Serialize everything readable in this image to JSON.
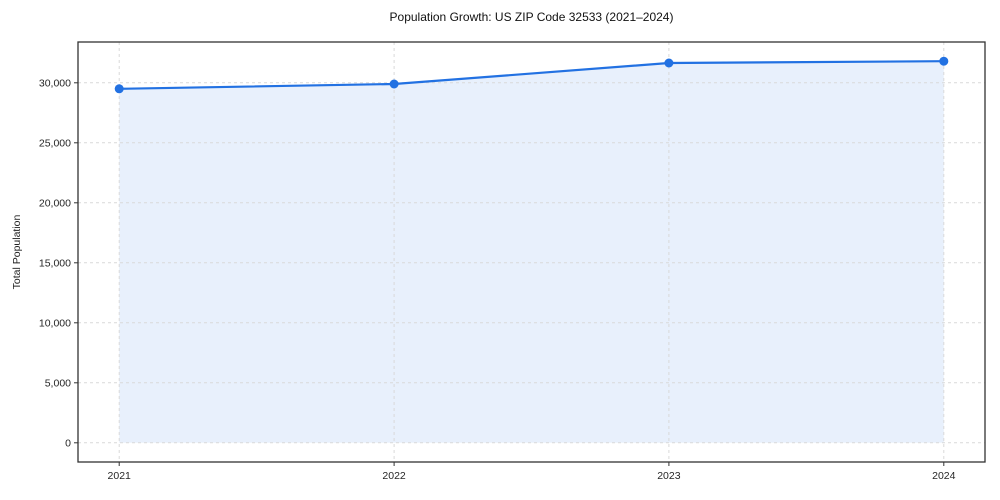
{
  "chart_data": {
    "type": "line",
    "title": "Population Growth: US ZIP Code 32533 (2021–2024)",
    "xlabel": "",
    "ylabel": "Total Population",
    "x": [
      2021,
      2022,
      2023,
      2024
    ],
    "x_tick_labels": [
      "2021",
      "2022",
      "2023",
      "2024"
    ],
    "series": [
      {
        "name": "Total Population",
        "values": [
          29500,
          29900,
          31650,
          31800
        ]
      }
    ],
    "y_ticks": {
      "values": [
        0,
        5000,
        10000,
        15000,
        20000,
        25000,
        30000
      ],
      "labels": [
        "0",
        "5,000",
        "10,000",
        "15,000",
        "20,000",
        "25,000",
        "30,000"
      ]
    },
    "xlim": [
      2020.85,
      2024.15
    ],
    "ylim": [
      -1600,
      33400
    ],
    "fill_to_zero": true,
    "grid": true,
    "grid_style": "dashed",
    "legend": "none",
    "colors": {
      "line": "#2271e2",
      "marker": "#2271e2",
      "fill": "#e8f0fc",
      "grid": "#d9d9d9",
      "axis": "#333333"
    }
  }
}
